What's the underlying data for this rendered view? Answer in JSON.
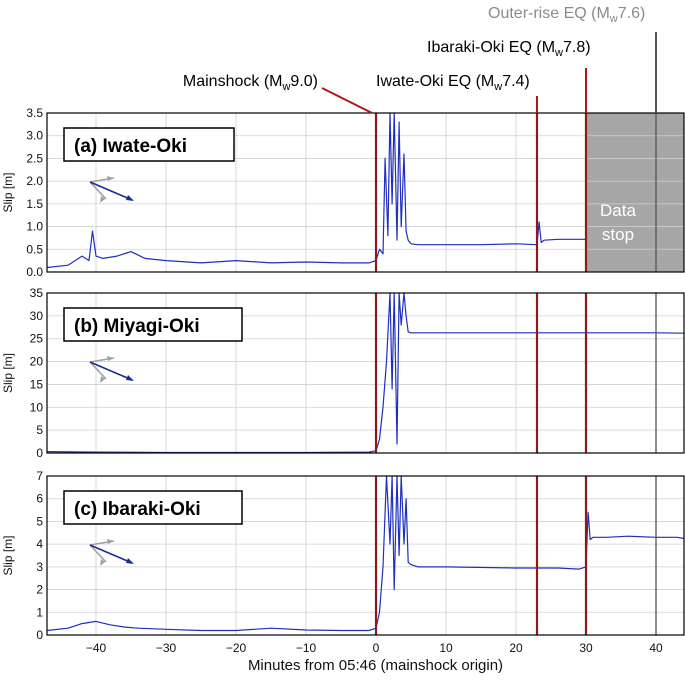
{
  "chart_data": {
    "type": "line",
    "xlabel": "Minutes from 05:46 (mainshock origin)",
    "xlim": [
      -47,
      44
    ],
    "xticks": [
      -40,
      -30,
      -20,
      -10,
      0,
      10,
      20,
      30,
      40
    ],
    "ylabel": "Slip [m]",
    "line_color": "#1f2fbf",
    "events": [
      {
        "id": "mainshock",
        "name": "Mainshock",
        "mag": "9.0",
        "x": 0,
        "color": "#8b1a1a"
      },
      {
        "id": "iwate",
        "name": "Iwate-Oki EQ",
        "mag": "7.4",
        "x": 23,
        "color": "#8b1a1a"
      },
      {
        "id": "ibaraki",
        "name": "Ibaraki-Oki EQ",
        "mag": "7.8",
        "x": 30,
        "color": "#8b1a1a"
      },
      {
        "id": "outerrise",
        "name": "Outer-rise EQ",
        "mag": "7.6",
        "x": 40,
        "color": "#555555"
      }
    ],
    "panels": [
      {
        "title": "(a) Iwate-Oki",
        "ylim": [
          0,
          3.5
        ],
        "yticks": [
          0,
          0.5,
          1.0,
          1.5,
          2.0,
          2.5,
          3.0,
          3.5
        ],
        "ytick_labels": [
          "0.0",
          "0.5",
          "1.0",
          "1.5",
          "2.0",
          "2.5",
          "3.0",
          "3.5"
        ],
        "data_stop": {
          "from": 30,
          "label_lines": [
            "Data",
            "stop"
          ]
        },
        "series": [
          {
            "x": [
              -47,
              -44,
              -42,
              -41,
              -40.5,
              -40,
              -39,
              -37,
              -35,
              -33,
              -30,
              -25,
              -20,
              -15,
              -10,
              -5,
              -1,
              0,
              0.5,
              1,
              1.3,
              1.7,
              2,
              2.3,
              2.6,
              3,
              3.3,
              3.6,
              4,
              4.3,
              4.6,
              5,
              6,
              10,
              15,
              20,
              23,
              23.3,
              23.6,
              24,
              26,
              28,
              30
            ],
            "y": [
              0.1,
              0.15,
              0.35,
              0.25,
              0.9,
              0.35,
              0.3,
              0.35,
              0.45,
              0.3,
              0.25,
              0.2,
              0.25,
              0.2,
              0.22,
              0.2,
              0.2,
              0.25,
              0.5,
              0.4,
              2.5,
              0.8,
              3.5,
              1.5,
              3.5,
              0.7,
              3.3,
              1.0,
              2.6,
              0.9,
              0.7,
              0.62,
              0.6,
              0.6,
              0.6,
              0.62,
              0.6,
              1.1,
              0.65,
              0.7,
              0.72,
              0.72,
              0.72
            ]
          }
        ]
      },
      {
        "title": "(b) Miyagi-Oki",
        "ylim": [
          0,
          35
        ],
        "yticks": [
          0,
          5,
          10,
          15,
          20,
          25,
          30,
          35
        ],
        "ytick_labels": [
          "0",
          "5",
          "10",
          "15",
          "20",
          "25",
          "30",
          "35"
        ],
        "series": [
          {
            "x": [
              -47,
              -40,
              -30,
              -20,
              -10,
              -1,
              0,
              0.5,
              1,
              1.5,
              2,
              2.3,
              2.6,
              3,
              3.3,
              3.6,
              4,
              4.3,
              4.6,
              5,
              6,
              10,
              20,
              30,
              40,
              44
            ],
            "y": [
              0.3,
              0.2,
              0.1,
              0.1,
              0.1,
              0.2,
              0.5,
              3,
              10,
              20,
              35,
              14,
              35,
              2,
              35,
              28,
              35,
              30,
              26.5,
              26.3,
              26.3,
              26.3,
              26.3,
              26.3,
              26.3,
              26.2
            ]
          }
        ]
      },
      {
        "title": "(c) Ibaraki-Oki",
        "ylim": [
          0,
          7
        ],
        "yticks": [
          0,
          1,
          2,
          3,
          4,
          5,
          6,
          7
        ],
        "ytick_labels": [
          "0",
          "1",
          "2",
          "3",
          "4",
          "5",
          "6",
          "7"
        ],
        "series": [
          {
            "x": [
              -47,
              -44,
              -42,
              -40,
              -38,
              -36,
              -34,
              -30,
              -25,
              -20,
              -15,
              -10,
              -5,
              -1,
              0,
              0.5,
              1,
              1.5,
              2,
              2.3,
              2.6,
              3,
              3.3,
              3.6,
              4,
              4.3,
              4.6,
              5,
              6,
              10,
              20,
              23,
              26,
              29,
              30,
              30.3,
              30.6,
              31,
              33,
              36,
              40,
              43,
              44
            ],
            "y": [
              0.2,
              0.3,
              0.5,
              0.6,
              0.45,
              0.35,
              0.3,
              0.25,
              0.2,
              0.2,
              0.3,
              0.22,
              0.2,
              0.2,
              0.3,
              1,
              3,
              7,
              4,
              7,
              2,
              7,
              3.5,
              7,
              4,
              6,
              3.2,
              3.1,
              3.0,
              3.0,
              2.95,
              2.95,
              2.95,
              2.9,
              3.0,
              5.4,
              4.2,
              4.3,
              4.3,
              4.35,
              4.3,
              4.3,
              4.25
            ]
          }
        ]
      }
    ]
  }
}
